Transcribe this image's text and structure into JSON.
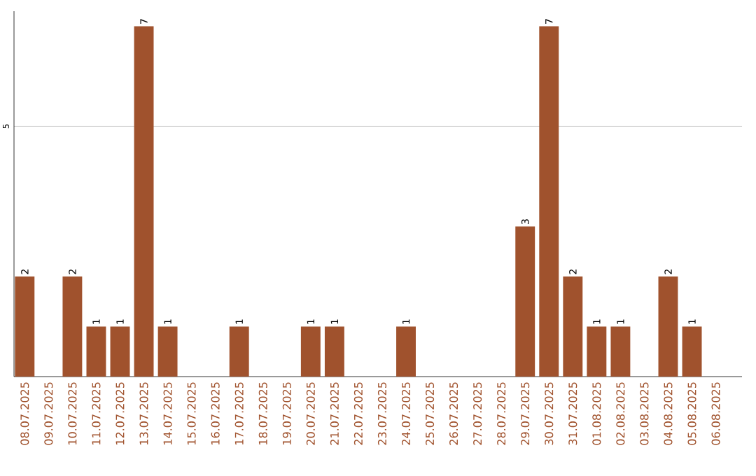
{
  "chart_data": {
    "type": "bar",
    "categories": [
      "08.07.2025",
      "09.07.2025",
      "10.07.2025",
      "11.07.2025",
      "12.07.2025",
      "13.07.2025",
      "14.07.2025",
      "15.07.2025",
      "16.07.2025",
      "17.07.2025",
      "18.07.2025",
      "19.07.2025",
      "20.07.2025",
      "21.07.2025",
      "22.07.2025",
      "23.07.2025",
      "24.07.2025",
      "25.07.2025",
      "26.07.2025",
      "27.07.2025",
      "28.07.2025",
      "29.07.2025",
      "30.07.2025",
      "31.07.2025",
      "01.08.2025",
      "02.08.2025",
      "03.08.2025",
      "04.08.2025",
      "05.08.2025",
      "06.08.2025"
    ],
    "values": [
      2,
      0,
      2,
      1,
      1,
      7,
      1,
      0,
      0,
      1,
      0,
      0,
      1,
      1,
      0,
      0,
      1,
      0,
      0,
      0,
      0,
      3,
      7,
      2,
      1,
      1,
      0,
      2,
      1,
      0
    ],
    "value_labels": [
      "2",
      null,
      "2",
      "1",
      "1",
      "7",
      "1",
      null,
      null,
      "1",
      null,
      null,
      "1",
      "1",
      null,
      null,
      "1",
      null,
      null,
      null,
      null,
      "3",
      "7",
      "2",
      "1",
      "1",
      null,
      "2",
      "1",
      null
    ],
    "color": "#a0522d",
    "ylim": [
      0,
      7.3
    ],
    "yticks": [
      5
    ],
    "grid": "y"
  }
}
